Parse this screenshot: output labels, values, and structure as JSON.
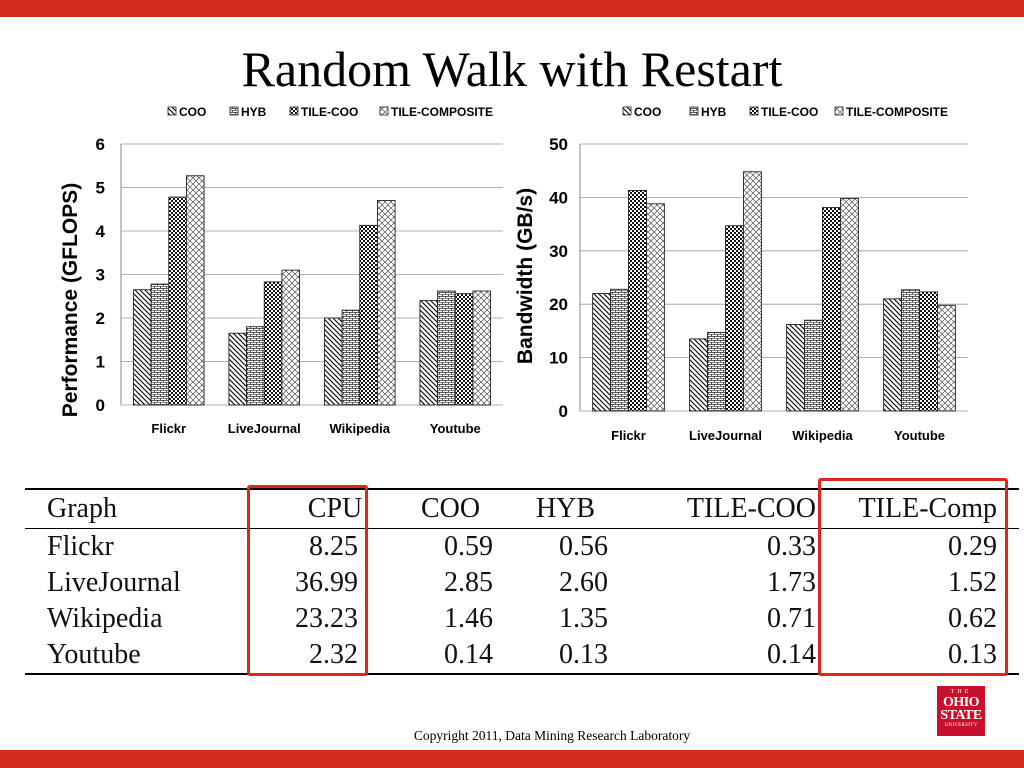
{
  "slide": {
    "title": "Random Walk with Restart",
    "copyright": "Copyright 2011, Data Mining Research Laboratory",
    "logo": {
      "line1": "THE",
      "line2": "OHIO",
      "line3": "STATE",
      "line4": "UNIVERSITY"
    },
    "colors": {
      "band": "#d52b1e",
      "highlight": "#e0261a"
    }
  },
  "chart_data": [
    {
      "type": "bar",
      "title": "",
      "xlabel": "",
      "ylabel": "Performance (GFLOPS)",
      "ylim": [
        0,
        6
      ],
      "yticks": [
        0,
        1,
        2,
        3,
        4,
        5,
        6
      ],
      "grid": true,
      "legend": "top",
      "categories": [
        "Flickr",
        "LiveJournal",
        "Wikipedia",
        "Youtube"
      ],
      "series": [
        {
          "name": "COO",
          "values": [
            2.65,
            1.65,
            2.0,
            2.4
          ]
        },
        {
          "name": "HYB",
          "values": [
            2.78,
            1.8,
            2.18,
            2.62
          ]
        },
        {
          "name": "TILE-COO",
          "values": [
            4.78,
            2.83,
            4.13,
            2.56
          ]
        },
        {
          "name": "TILE-COMPOSITE",
          "values": [
            5.27,
            3.1,
            4.7,
            2.62
          ]
        }
      ]
    },
    {
      "type": "bar",
      "title": "",
      "xlabel": "",
      "ylabel": "Bandwidth (GB/s)",
      "ylim": [
        0,
        50
      ],
      "yticks": [
        0,
        10,
        20,
        30,
        40,
        50
      ],
      "grid": true,
      "legend": "top",
      "categories": [
        "Flickr",
        "LiveJournal",
        "Wikipedia",
        "Youtube"
      ],
      "series": [
        {
          "name": "COO",
          "values": [
            22.0,
            13.5,
            16.2,
            21.0
          ]
        },
        {
          "name": "HYB",
          "values": [
            22.8,
            14.7,
            17.0,
            22.7
          ]
        },
        {
          "name": "TILE-COO",
          "values": [
            41.3,
            34.7,
            38.1,
            22.3
          ]
        },
        {
          "name": "TILE-COMPOSITE",
          "values": [
            38.8,
            44.8,
            39.8,
            19.8
          ]
        }
      ]
    }
  ],
  "table": {
    "headers": [
      "Graph",
      "CPU",
      "COO",
      "HYB",
      "TILE-COO",
      "TILE-Comp"
    ],
    "rows": [
      [
        "Flickr",
        "8.25",
        "0.59",
        "0.56",
        "0.33",
        "0.29"
      ],
      [
        "LiveJournal",
        "36.99",
        "2.85",
        "2.60",
        "1.73",
        "1.52"
      ],
      [
        "Wikipedia",
        "23.23",
        "1.46",
        "1.35",
        "0.71",
        "0.62"
      ],
      [
        "Youtube",
        "2.32",
        "0.14",
        "0.13",
        "0.14",
        "0.13"
      ]
    ]
  }
}
